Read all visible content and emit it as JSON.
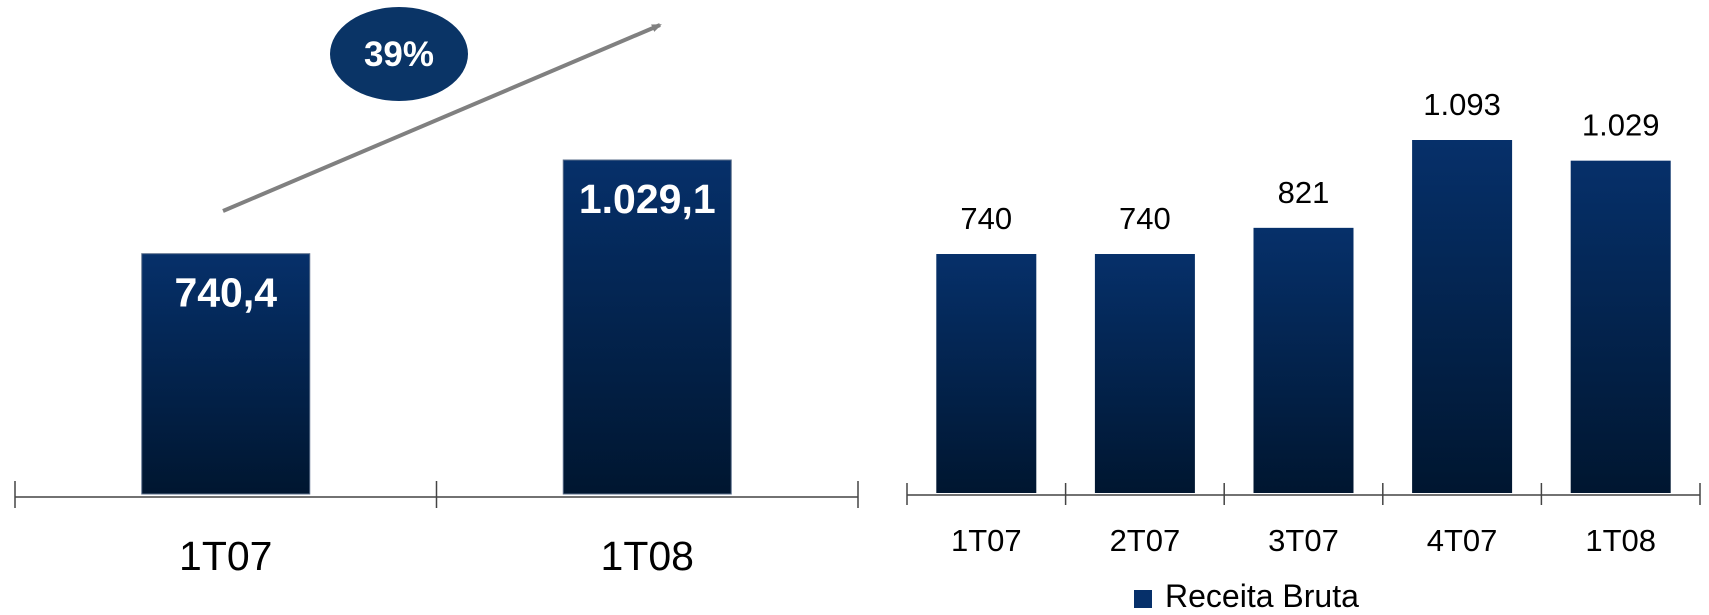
{
  "colors": {
    "bar_top": "#06306a",
    "bar_bottom": "#001630",
    "axis": "#444444",
    "arrow": "#808080",
    "badge": "#0a3466"
  },
  "chart_data": [
    {
      "type": "bar",
      "categories": [
        "1T07",
        "1T08"
      ],
      "values": [
        740.4,
        1029.1
      ],
      "value_labels": [
        "740,4",
        "1.029,1"
      ],
      "ylim": [
        0,
        1029.1
      ],
      "growth_badge": "39%",
      "growth_arrow": true
    },
    {
      "type": "bar",
      "categories": [
        "1T07",
        "2T07",
        "3T07",
        "4T07",
        "1T08"
      ],
      "series": [
        {
          "name": "Receita Bruta",
          "values": [
            740,
            740,
            821,
            1093,
            1029
          ]
        }
      ],
      "value_labels": [
        "740",
        "740",
        "821",
        "1.093",
        "1.029"
      ],
      "ylim": [
        0,
        1093
      ],
      "legend": {
        "position": "bottom",
        "label": "Receita Bruta"
      }
    }
  ]
}
